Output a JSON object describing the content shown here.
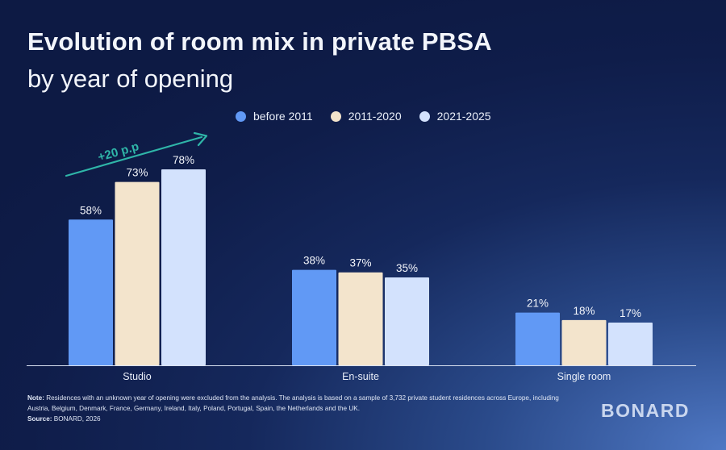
{
  "header": {
    "title": "Evolution of room mix in private PBSA",
    "subtitle": "by year of opening"
  },
  "annotation": {
    "text": "+20 p.p"
  },
  "chart_data": {
    "type": "bar",
    "title": "Evolution of room mix in private PBSA",
    "subtitle": "by year of opening",
    "categories": [
      "Studio",
      "En-suite",
      "Single room"
    ],
    "series": [
      {
        "name": "before 2011",
        "values": [
          58,
          38,
          21
        ],
        "color": "#6199f5"
      },
      {
        "name": "2011-2020",
        "values": [
          73,
          37,
          18
        ],
        "color": "#f3e4cc"
      },
      {
        "name": "2021-2025",
        "values": [
          78,
          35,
          17
        ],
        "color": "#d3e2fd"
      }
    ],
    "value_suffix": "%",
    "ylim": [
      0,
      100
    ],
    "grid": false,
    "legend": "top-center"
  },
  "footer": {
    "note_label": "Note:",
    "note_text": " Residences with an unknown year of opening were excluded from the analysis. The analysis is based on a sample of 3,732 private student residences across Europe, including Austria, Belgium, Denmark, France, Germany, Ireland, Italy, Poland, Portugal, Spain, the Netherlands and the UK.",
    "source_label": "Source:",
    "source_text": " BONARD, 2026",
    "logo": "BONARD"
  },
  "colors": {
    "axis": "#d8e0f0",
    "annotation": "#2fb5a8"
  }
}
